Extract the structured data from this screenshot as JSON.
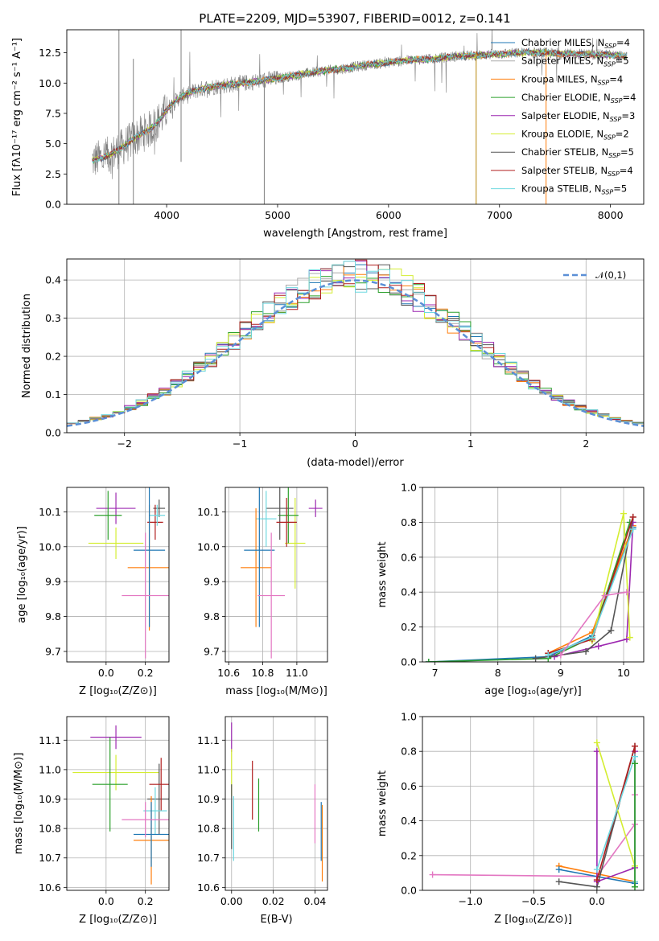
{
  "title": "PLATE=2209, MJD=53907, FIBERID=0012, z=0.141",
  "colors": {
    "data": "#808080",
    "tab_blue": "#1f77b4",
    "tab_orange": "#ff7f0e"
  },
  "chart_data": [
    {
      "id": "spectrum",
      "type": "line",
      "xlabel": "wavelength [Angstrom, rest frame]",
      "ylabel": "Flux [fλ10⁻¹⁷ erg cm⁻² s⁻¹ A⁻¹]",
      "xlim": [
        3100,
        8300
      ],
      "ylim": [
        0,
        14.4
      ],
      "xticks": [
        4000,
        5000,
        6000,
        7000,
        8000
      ],
      "yticks": [
        0.0,
        2.5,
        5.0,
        7.5,
        10.0,
        12.5
      ],
      "grid": false,
      "legend_position": "upper-right",
      "continuum": {
        "wavelength": [
          3330,
          3500,
          3600,
          3700,
          3850,
          3950,
          4000,
          4100,
          4200,
          4350,
          4500,
          4700,
          4850,
          5000,
          5200,
          5400,
          5600,
          5800,
          6000,
          6200,
          6400,
          6600,
          6800,
          7000,
          7200,
          7400,
          7600,
          7800,
          8000,
          8150
        ],
        "flux": [
          3.6,
          4.1,
          4.7,
          5.4,
          6.2,
          7.1,
          7.8,
          8.7,
          9.2,
          9.6,
          9.8,
          10.0,
          10.2,
          10.4,
          10.7,
          11.0,
          11.2,
          11.5,
          11.7,
          11.9,
          12.0,
          12.2,
          12.3,
          12.4,
          12.5,
          12.5,
          12.4,
          12.4,
          12.3,
          12.2
        ]
      },
      "series": [
        {
          "name": "Chabrier MILES, N_SSP=4",
          "color": "#1f77b4"
        },
        {
          "name": "Salpeter MILES, N_SSP=5",
          "color": "#aaaaaa"
        },
        {
          "name": "Kroupa MILES, N_SSP=4",
          "color": "#ff7f0e"
        },
        {
          "name": "Chabrier ELODIE, N_SSP=4",
          "color": "#2ca02c"
        },
        {
          "name": "Salpeter ELODIE, N_SSP=3",
          "color": "#9c27b0"
        },
        {
          "name": "Kroupa ELODIE, N_SSP=2",
          "color": "#d4ed31"
        },
        {
          "name": "Chabrier STELIB, N_SSP=5",
          "color": "#555555"
        },
        {
          "name": "Salpeter STELIB, N_SSP=4",
          "color": "#b01f1f"
        },
        {
          "name": "Kroupa STELIB, N_SSP=5",
          "color": "#6fd8e0"
        }
      ],
      "legend_labels": [
        {
          "prefix": "Chabrier MILES, N",
          "sub": "SSP",
          "suffix": "=4"
        },
        {
          "prefix": "Salpeter MILES, N",
          "sub": "SSP",
          "suffix": "=5"
        },
        {
          "prefix": "Kroupa MILES, N",
          "sub": "SSP",
          "suffix": "=4"
        },
        {
          "prefix": "Chabrier ELODIE, N",
          "sub": "SSP",
          "suffix": "=4"
        },
        {
          "prefix": "Salpeter ELODIE, N",
          "sub": "SSP",
          "suffix": "=3"
        },
        {
          "prefix": "Kroupa ELODIE, N",
          "sub": "SSP",
          "suffix": "=2"
        },
        {
          "prefix": "Chabrier STELIB, N",
          "sub": "SSP",
          "suffix": "=5"
        },
        {
          "prefix": "Salpeter STELIB, N",
          "sub": "SSP",
          "suffix": "=4"
        },
        {
          "prefix": "Kroupa STELIB, N",
          "sub": "SSP",
          "suffix": "=5"
        }
      ],
      "spikes": [
        {
          "x": 3570,
          "ymax": 14.4,
          "ymin": 0,
          "color": "#808080"
        },
        {
          "x": 3700,
          "ymax": 12.0,
          "ymin": 0,
          "color": "#808080"
        },
        {
          "x": 4130,
          "ymax": 14.4,
          "ymin": 3.5,
          "color": "#808080"
        },
        {
          "x": 4880,
          "ymax": 10.5,
          "ymin": 0,
          "color": "#808080"
        },
        {
          "x": 6790,
          "ymax": 12.6,
          "ymin": 0,
          "color": "#b8860b"
        },
        {
          "x": 7420,
          "ymax": 12.8,
          "ymin": 0,
          "color": "#ff7f0e"
        }
      ]
    },
    {
      "id": "residuals",
      "type": "histogram",
      "xlabel": "(data-model)/error",
      "ylabel": "Normed distribution",
      "xlim": [
        -2.5,
        2.5
      ],
      "ylim": [
        0,
        0.455
      ],
      "xticks": [
        -2,
        -1,
        0,
        1,
        2
      ],
      "xtick_labels": [
        "−2",
        "−1",
        "0",
        "1",
        "2"
      ],
      "yticks": [
        0.0,
        0.1,
        0.2,
        0.3,
        0.4
      ],
      "grid": true,
      "legend_position": "upper-right",
      "gaussian_label": "𝒩(0,1)",
      "gaussian_color": "#5b8fd6",
      "bin_width": 0.1,
      "histograms": [
        {
          "color": "#1f77b4"
        },
        {
          "color": "#aaaaaa"
        },
        {
          "color": "#ff7f0e"
        },
        {
          "color": "#2ca02c"
        },
        {
          "color": "#9c27b0"
        },
        {
          "color": "#d4ed31"
        },
        {
          "color": "#555555"
        },
        {
          "color": "#b01f1f"
        },
        {
          "color": "#6fd8e0"
        }
      ]
    },
    {
      "id": "age-vs-Z",
      "type": "errorbar",
      "xlabel": "Z [log₁₀(Z/Z⊙)]",
      "ylabel": "age  [log₁₀(age/yr)]",
      "xlim": [
        -0.2,
        0.32
      ],
      "ylim": [
        9.67,
        10.17
      ],
      "xticks": [
        0.0,
        0.2
      ],
      "yticks": [
        9.7,
        9.8,
        9.9,
        10.0,
        10.1
      ],
      "grid": true,
      "points": [
        {
          "x": 0.05,
          "y": 10.11,
          "xerr": 0.1,
          "yerr": 0.045,
          "color": "#9c27b0"
        },
        {
          "x": 0.05,
          "y": 10.01,
          "xerr": 0.14,
          "yerr": 0.045,
          "color": "#d4ed31"
        },
        {
          "x": 0.01,
          "y": 10.09,
          "xerr": 0.07,
          "yerr": 0.07,
          "color": "#2ca02c"
        },
        {
          "x": 0.27,
          "y": 10.11,
          "xerr": 0.03,
          "yerr": 0.025,
          "color": "#555555"
        },
        {
          "x": 0.25,
          "y": 10.07,
          "xerr": 0.04,
          "yerr": 0.05,
          "color": "#b01f1f"
        },
        {
          "x": 0.26,
          "y": 10.09,
          "xerr": 0.04,
          "yerr": 0.03,
          "color": "#6fd8e0"
        },
        {
          "x": 0.22,
          "y": 9.94,
          "xerr": 0.11,
          "yerr": 0.18,
          "color": "#ff7f0e"
        },
        {
          "x": 0.22,
          "y": 9.99,
          "xerr": 0.08,
          "yerr": 0.22,
          "color": "#1f77b4"
        },
        {
          "x": 0.2,
          "y": 9.86,
          "xerr": 0.12,
          "yerr": 0.18,
          "color": "#e377c2"
        }
      ]
    },
    {
      "id": "age-vs-mass",
      "type": "errorbar",
      "xlabel": "mass [log₁₀(M/M⊙)]",
      "ylabel": "",
      "xlim": [
        10.58,
        11.18
      ],
      "ylim": [
        9.67,
        10.17
      ],
      "xticks": [
        10.6,
        10.8,
        11.0
      ],
      "yticks": [
        9.7,
        9.8,
        9.9,
        10.0,
        10.1
      ],
      "grid": true,
      "points": [
        {
          "x": 11.11,
          "y": 10.11,
          "xerr": 0.04,
          "yerr": 0.025,
          "color": "#9c27b0"
        },
        {
          "x": 10.99,
          "y": 10.01,
          "xerr": 0.06,
          "yerr": 0.13,
          "color": "#d4ed31"
        },
        {
          "x": 10.95,
          "y": 10.09,
          "xerr": 0.06,
          "yerr": 0.08,
          "color": "#2ca02c"
        },
        {
          "x": 10.9,
          "y": 10.11,
          "xerr": 0.08,
          "yerr": 0.09,
          "color": "#555555"
        },
        {
          "x": 10.94,
          "y": 10.07,
          "xerr": 0.06,
          "yerr": 0.07,
          "color": "#b01f1f"
        },
        {
          "x": 10.82,
          "y": 10.08,
          "xerr": 0.06,
          "yerr": 0.08,
          "color": "#6fd8e0"
        },
        {
          "x": 10.76,
          "y": 9.94,
          "xerr": 0.09,
          "yerr": 0.17,
          "color": "#ff7f0e"
        },
        {
          "x": 10.78,
          "y": 9.99,
          "xerr": 0.09,
          "yerr": 0.22,
          "color": "#1f77b4"
        },
        {
          "x": 10.85,
          "y": 9.86,
          "xerr": 0.08,
          "yerr": 0.18,
          "color": "#e377c2"
        }
      ]
    },
    {
      "id": "weight-vs-age",
      "type": "line",
      "xlabel": "age  [log₁₀(age/yr)]",
      "ylabel": "mass weight",
      "xlim": [
        6.8,
        10.32
      ],
      "ylim": [
        0,
        1.0
      ],
      "xticks": [
        7,
        8,
        9,
        10
      ],
      "yticks": [
        0.0,
        0.2,
        0.4,
        0.6,
        0.8,
        1.0
      ],
      "grid": true,
      "series": [
        {
          "color": "#1f77b4",
          "x": [
            6.9,
            8.8,
            9.5,
            10.15
          ],
          "y": [
            0.0,
            0.03,
            0.15,
            0.77
          ]
        },
        {
          "color": "#ff7f0e",
          "x": [
            8.8,
            9.5,
            10.15
          ],
          "y": [
            0.05,
            0.17,
            0.78
          ]
        },
        {
          "color": "#2ca02c",
          "x": [
            6.9,
            8.8,
            9.5,
            10.1
          ],
          "y": [
            0.0,
            0.02,
            0.14,
            0.8
          ]
        },
        {
          "color": "#9c27b0",
          "x": [
            8.9,
            9.6,
            10.05,
            10.15
          ],
          "y": [
            0.03,
            0.09,
            0.13,
            0.8
          ]
        },
        {
          "color": "#d4ed31",
          "x": [
            9.5,
            10.0,
            10.1
          ],
          "y": [
            0.12,
            0.85,
            0.14
          ]
        },
        {
          "color": "#555555",
          "x": [
            8.6,
            9.4,
            9.8,
            10.15
          ],
          "y": [
            0.02,
            0.06,
            0.18,
            0.83
          ]
        },
        {
          "color": "#b01f1f",
          "x": [
            8.8,
            9.5,
            10.15
          ],
          "y": [
            0.05,
            0.13,
            0.83
          ]
        },
        {
          "color": "#6fd8e0",
          "x": [
            8.8,
            9.5,
            10.15
          ],
          "y": [
            0.04,
            0.14,
            0.76
          ]
        },
        {
          "color": "#e377c2",
          "x": [
            9.0,
            9.7,
            10.05
          ],
          "y": [
            0.04,
            0.38,
            0.4
          ]
        }
      ]
    },
    {
      "id": "mass-vs-Z",
      "type": "errorbar",
      "xlabel": "Z [log₁₀(Z/Z⊙)]",
      "ylabel": "mass [log₁₀(M/M⊙)]",
      "xlim": [
        -0.2,
        0.32
      ],
      "ylim": [
        10.59,
        11.18
      ],
      "xticks": [
        0.0,
        0.2
      ],
      "yticks": [
        10.6,
        10.7,
        10.8,
        10.9,
        11.0,
        11.1
      ],
      "grid": true,
      "points": [
        {
          "x": 0.05,
          "y": 11.11,
          "xerr": 0.13,
          "yerr": 0.04,
          "color": "#9c27b0"
        },
        {
          "x": 0.05,
          "y": 10.99,
          "xerr": 0.22,
          "yerr": 0.06,
          "color": "#d4ed31"
        },
        {
          "x": 0.02,
          "y": 10.95,
          "xerr": 0.09,
          "yerr": 0.16,
          "color": "#2ca02c"
        },
        {
          "x": 0.27,
          "y": 10.9,
          "xerr": 0.06,
          "yerr": 0.12,
          "color": "#555555"
        },
        {
          "x": 0.28,
          "y": 10.95,
          "xerr": 0.06,
          "yerr": 0.09,
          "color": "#b01f1f"
        },
        {
          "x": 0.25,
          "y": 10.86,
          "xerr": 0.06,
          "yerr": 0.08,
          "color": "#6fd8e0"
        },
        {
          "x": 0.23,
          "y": 10.76,
          "xerr": 0.09,
          "yerr": 0.15,
          "color": "#ff7f0e"
        },
        {
          "x": 0.23,
          "y": 10.78,
          "xerr": 0.09,
          "yerr": 0.11,
          "color": "#1f77b4"
        },
        {
          "x": 0.2,
          "y": 10.83,
          "xerr": 0.12,
          "yerr": 0.06,
          "color": "#e377c2"
        }
      ]
    },
    {
      "id": "mass-vs-ebv",
      "type": "errorbar",
      "xlabel": "E(B-V)",
      "ylabel": "",
      "xlim": [
        -0.003,
        0.046
      ],
      "ylim": [
        10.59,
        11.18
      ],
      "xticks": [
        0.0,
        0.02,
        0.04
      ],
      "yticks": [
        10.6,
        10.7,
        10.8,
        10.9,
        11.0,
        11.1
      ],
      "grid": true,
      "points": [
        {
          "x": 0.0,
          "y": 11.11,
          "xerr": 0,
          "yerr": 0.05,
          "color": "#9c27b0"
        },
        {
          "x": 0.0,
          "y": 10.99,
          "xerr": 0,
          "yerr": 0.08,
          "color": "#d4ed31"
        },
        {
          "x": 0.0,
          "y": 10.84,
          "xerr": 0,
          "yerr": 0.11,
          "color": "#555555"
        },
        {
          "x": 0.001,
          "y": 10.8,
          "xerr": 0,
          "yerr": 0.11,
          "color": "#6fd8e0"
        },
        {
          "x": 0.01,
          "y": 10.93,
          "xerr": 0,
          "yerr": 0.1,
          "color": "#b01f1f"
        },
        {
          "x": 0.013,
          "y": 10.88,
          "xerr": 0,
          "yerr": 0.09,
          "color": "#2ca02c"
        },
        {
          "x": 0.04,
          "y": 10.85,
          "xerr": 0,
          "yerr": 0.1,
          "color": "#e377c2"
        },
        {
          "x": 0.043,
          "y": 10.79,
          "xerr": 0,
          "yerr": 0.1,
          "color": "#1f77b4"
        },
        {
          "x": 0.0435,
          "y": 10.75,
          "xerr": 0,
          "yerr": 0.13,
          "color": "#ff7f0e"
        }
      ]
    },
    {
      "id": "weight-vs-Z",
      "type": "line",
      "xlabel": "Z [log₁₀(Z/Z⊙)]",
      "ylabel": "mass weight",
      "xlim": [
        -1.38,
        0.37
      ],
      "ylim": [
        0,
        1.0
      ],
      "xticks": [
        -1.0,
        -0.5,
        0.0
      ],
      "xtick_labels": [
        "−1.0",
        "−0.5",
        "0.0"
      ],
      "yticks": [
        0.0,
        0.2,
        0.4,
        0.6,
        0.8,
        1.0
      ],
      "grid": true,
      "series": [
        {
          "color": "#e377c2",
          "x": [
            -1.3,
            0.0,
            0.3,
            0.3
          ],
          "y": [
            0.09,
            0.08,
            0.38,
            0.55
          ]
        },
        {
          "color": "#ff7f0e",
          "x": [
            -0.3,
            0.3
          ],
          "y": [
            0.14,
            0.05
          ]
        },
        {
          "color": "#1f77b4",
          "x": [
            -0.3,
            0.3
          ],
          "y": [
            0.12,
            0.04
          ]
        },
        {
          "color": "#555555",
          "x": [
            -0.3,
            0.0,
            0.3,
            0.3
          ],
          "y": [
            0.05,
            0.02,
            0.83,
            0.02
          ]
        },
        {
          "color": "#9c27b0",
          "x": [
            0.0,
            0.0,
            0.3,
            0.3
          ],
          "y": [
            0.8,
            0.05,
            0.13,
            0.8
          ]
        },
        {
          "color": "#d4ed31",
          "x": [
            0.0,
            0.3
          ],
          "y": [
            0.85,
            0.14
          ]
        },
        {
          "color": "#b01f1f",
          "x": [
            0.0,
            0.3,
            0.3
          ],
          "y": [
            0.06,
            0.83,
            0.05
          ]
        },
        {
          "color": "#6fd8e0",
          "x": [
            0.0,
            0.3,
            0.3
          ],
          "y": [
            0.12,
            0.77,
            0.05
          ]
        },
        {
          "color": "#2ca02c",
          "x": [
            0.3,
            0.3
          ],
          "y": [
            0.73,
            0.02
          ]
        }
      ]
    }
  ]
}
